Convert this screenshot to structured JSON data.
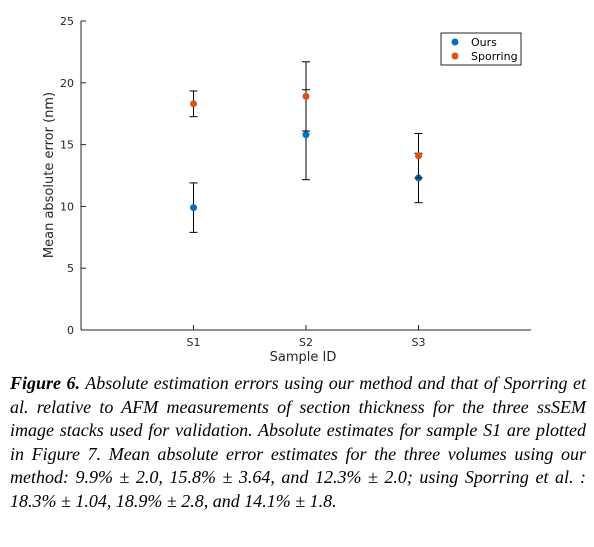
{
  "chart_data": {
    "type": "scatter",
    "title": "",
    "xlabel": "Sample ID",
    "ylabel": "Mean absolute error (nm)",
    "categories": [
      "S1",
      "S2",
      "S3"
    ],
    "ylim": [
      0,
      25
    ],
    "yticks": [
      0,
      5,
      10,
      15,
      20,
      25
    ],
    "grid": false,
    "legend_position": "top-right",
    "series": [
      {
        "name": "Ours",
        "color": "#0072BD",
        "values": [
          9.9,
          15.8,
          12.3
        ],
        "errors": [
          2.0,
          3.64,
          2.0
        ]
      },
      {
        "name": "Sporring",
        "color": "#D95319",
        "values": [
          18.3,
          18.9,
          14.1
        ],
        "errors": [
          1.04,
          2.8,
          1.8
        ]
      }
    ]
  },
  "caption": {
    "label": "Figure 6.",
    "text": "Absolute estimation errors using our method and that of Sporring et al. relative to AFM measurements of section thickness for the three ssSEM image stacks used for validation. Absolute estimates for sample S1 are plotted in Figure 7. Mean absolute error estimates for the three volumes using our method: 9.9% ± 2.0, 15.8% ± 3.64, and 12.3% ± 2.0; using Sporring et al. : 18.3% ± 1.04, 18.9% ± 2.8, and 14.1% ± 1.8."
  }
}
